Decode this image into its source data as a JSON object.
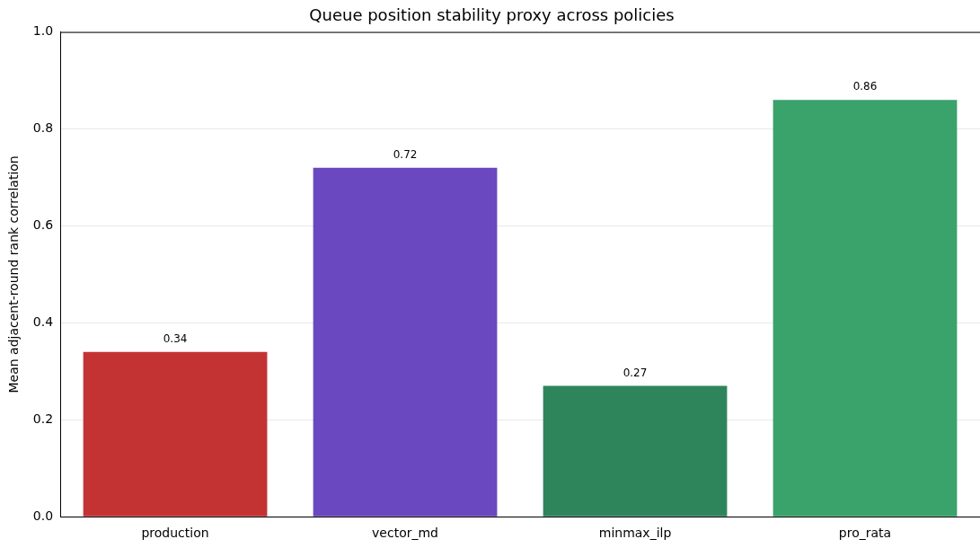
{
  "chart_data": {
    "type": "bar",
    "title": "Queue position stability proxy across policies",
    "ylabel": "Mean adjacent-round rank correlation",
    "categories": [
      "production",
      "vector_md",
      "minmax_ilp",
      "pro_rata"
    ],
    "values": [
      0.34,
      0.72,
      0.27,
      0.86
    ],
    "colors": [
      "#c43333",
      "#6a48bf",
      "#2e855c",
      "#3aa26b"
    ],
    "ylim": [
      0,
      1
    ],
    "yticks": [
      {
        "value": 0,
        "label": "0.0"
      },
      {
        "value": 0.2,
        "label": "0.2"
      },
      {
        "value": 0.4,
        "label": "0.4"
      },
      {
        "value": 0.6,
        "label": "0.6"
      },
      {
        "value": 0.8,
        "label": "0.8"
      },
      {
        "value": 1,
        "label": "1.0"
      }
    ],
    "grid": "y",
    "data_labels": true,
    "legend": false
  }
}
